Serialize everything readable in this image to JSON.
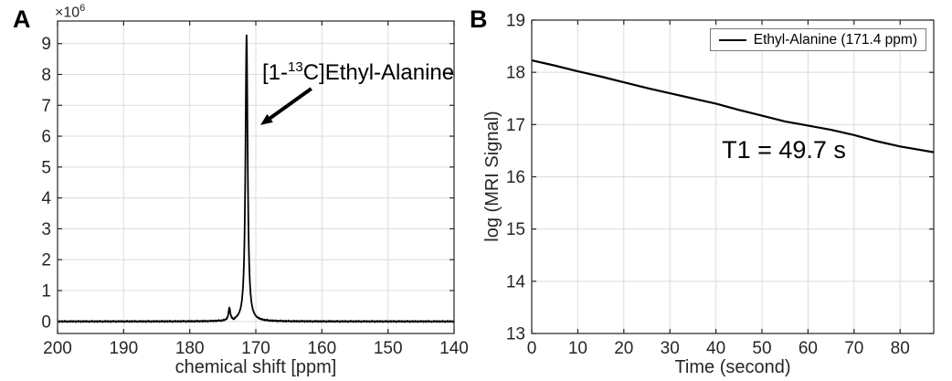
{
  "panels": {
    "a": {
      "label": "A",
      "exponent": {
        "base": "×10",
        "sup": "6"
      },
      "annotation": {
        "prefix": "[1-",
        "isotope_sup": "13",
        "rest": "C]Ethyl-Alanine"
      }
    },
    "b": {
      "label": "B",
      "t1_text": "T1 = 49.7 s"
    }
  },
  "colors": {
    "line": "#000000",
    "axis": "#262626",
    "grid": "#dcdcdc",
    "background": "#ffffff",
    "legend_border": "#7a7a7a"
  },
  "chart_data": [
    {
      "id": "nmr_spectrum",
      "type": "line",
      "title": "",
      "xlabel": "chemical shift [ppm]",
      "ylabel": "×10^6",
      "xlim": [
        200,
        140
      ],
      "x_reversed": true,
      "ylim": [
        -0.39,
        9.73
      ],
      "x_ticks": [
        200,
        190,
        180,
        170,
        160,
        150,
        140
      ],
      "y_ticks": [
        0,
        1,
        2,
        3,
        4,
        5,
        6,
        7,
        8,
        9
      ],
      "grid": true,
      "units_exponent": "×10^6",
      "peaks": [
        {
          "ppm": 174.0,
          "amplitude": 0.4,
          "hwhm": 0.16
        },
        {
          "ppm": 173.35,
          "amplitude": -0.05,
          "hwhm": 0.12
        },
        {
          "ppm": 171.4,
          "amplitude": 9.29,
          "hwhm": 0.2
        }
      ],
      "annotation": {
        "text": "[1-13C]Ethyl-Alanine",
        "arrow_from": [
          161.6,
          7.54
        ],
        "arrow_to": [
          169.3,
          6.36
        ]
      }
    },
    {
      "id": "t1_decay",
      "type": "line",
      "title": "",
      "xlabel": "Time (second)",
      "ylabel": "log (MRI Signal)",
      "xlim": [
        0,
        87.3
      ],
      "ylim": [
        13,
        19
      ],
      "x_ticks": [
        0,
        10,
        20,
        30,
        40,
        50,
        60,
        70,
        80
      ],
      "y_ticks": [
        13,
        14,
        15,
        16,
        17,
        18,
        19
      ],
      "grid": true,
      "legend_position": "top-right",
      "series": [
        {
          "name": "Ethyl-Alanine (171.4 ppm)",
          "x": [
            0,
            5,
            10,
            15,
            20,
            25,
            30,
            35,
            40,
            45,
            50,
            55,
            60,
            65,
            70,
            75,
            80,
            87.3
          ],
          "y": [
            18.23,
            18.13,
            18.02,
            17.92,
            17.81,
            17.7,
            17.6,
            17.5,
            17.4,
            17.28,
            17.17,
            17.06,
            16.98,
            16.9,
            16.8,
            16.68,
            16.58,
            16.47
          ]
        }
      ],
      "annotation": {
        "text": "T1 = 49.7 s",
        "x": 52,
        "y": 16.5
      }
    }
  ]
}
